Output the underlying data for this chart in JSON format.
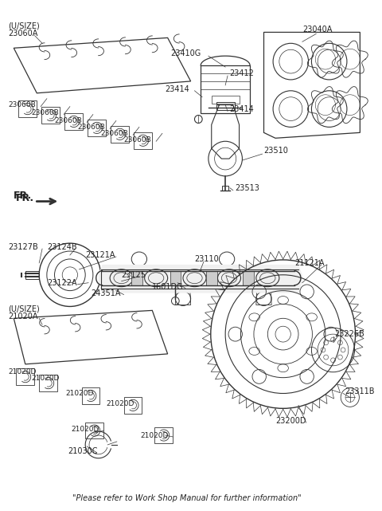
{
  "bg_color": "#ffffff",
  "line_color": "#333333",
  "text_color": "#222222",
  "footer": "\"Please refer to Work Shop Manual for further information\"",
  "figsize": [
    4.8,
    6.41
  ],
  "dpi": 100,
  "xlim": [
    0,
    480
  ],
  "ylim": [
    0,
    641
  ]
}
